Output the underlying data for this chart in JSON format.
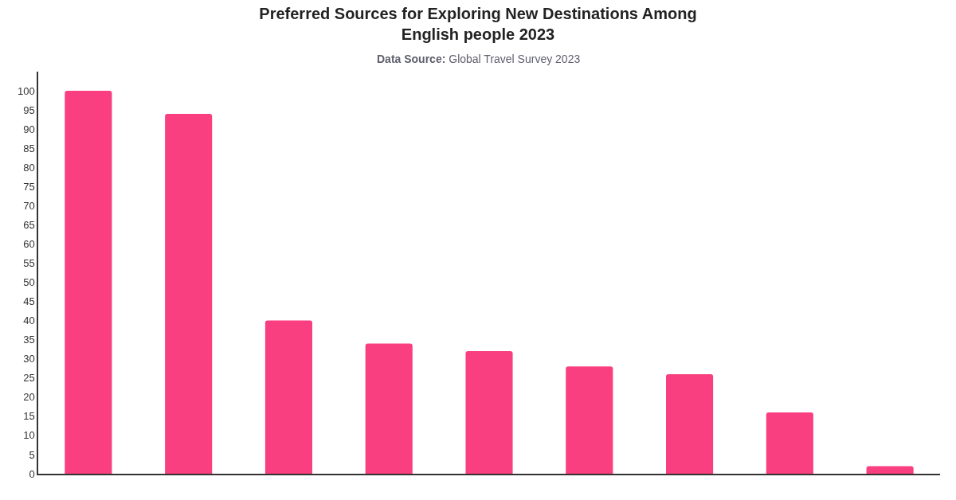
{
  "chart_data": {
    "type": "bar",
    "title": "Preferred Sources for Exploring New Destinations Among\nEnglish people 2023",
    "subtitle": "Data Source: Global Travel Survey 2023",
    "categories": [
      null,
      null,
      null,
      null,
      null,
      null,
      null,
      null,
      null
    ],
    "values": [
      100,
      94,
      40,
      34,
      32,
      28,
      26,
      16,
      2
    ],
    "color": "#f93f80",
    "ylim": [
      0,
      105
    ],
    "yticks": [
      0,
      5,
      10,
      15,
      20,
      25,
      30,
      35,
      40,
      45,
      50,
      55,
      60,
      65,
      70,
      75,
      80,
      85,
      90,
      95,
      100
    ]
  }
}
